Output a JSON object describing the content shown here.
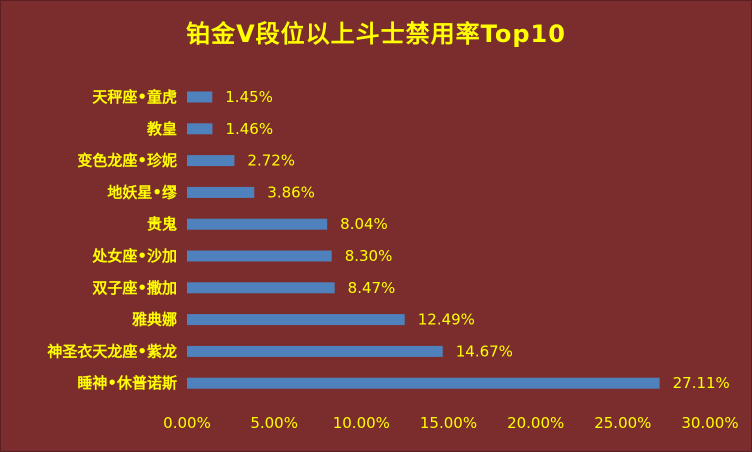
{
  "chart_data": {
    "type": "bar",
    "orientation": "horizontal",
    "title": "铂金V段位以上斗士禁用率Top10",
    "categories": [
      "天秤座•童虎",
      "教皇",
      "变色龙座•珍妮",
      "地妖星•缪",
      "贵鬼",
      "处女座•沙加",
      "双子座•撒加",
      "雅典娜",
      "神圣衣天龙座•紫龙",
      "睡神•休普诺斯"
    ],
    "values": [
      1.45,
      1.46,
      2.72,
      3.86,
      8.04,
      8.3,
      8.47,
      12.49,
      14.67,
      27.11
    ],
    "value_labels": [
      "1.45%",
      "1.46%",
      "2.72%",
      "3.86%",
      "8.04%",
      "8.30%",
      "8.47%",
      "12.49%",
      "14.67%",
      "27.11%"
    ],
    "xlim": [
      0,
      30
    ],
    "x_ticks": [
      0,
      5,
      10,
      15,
      20,
      25,
      30
    ],
    "x_tick_labels": [
      "0.00%",
      "5.00%",
      "10.00%",
      "15.00%",
      "20.00%",
      "25.00%",
      "30.00%"
    ],
    "grid": false,
    "legend": "none",
    "colors": {
      "background": "#7b2c2d",
      "bar": "#4f81bd",
      "text": "#ffff00"
    }
  }
}
